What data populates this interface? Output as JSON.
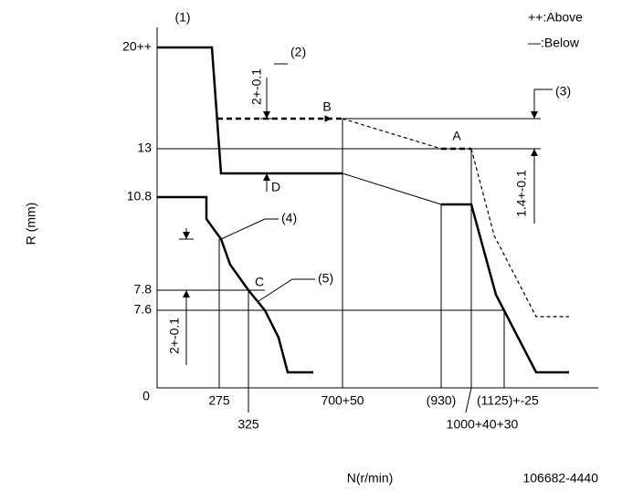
{
  "header": {
    "number": "(1)",
    "legend_above": "++:Above",
    "legend_below": "—:Below"
  },
  "axes": {
    "y_label": "R (mm)",
    "x_label": "N(r/min)",
    "y_ticks": [
      "20++",
      "13",
      "10.8",
      "7.8",
      "7.6",
      "0"
    ],
    "x_ticks": [
      "275",
      "325",
      "700+50",
      "(930)",
      "(1125)+-25",
      "1000+40+30"
    ]
  },
  "callouts": [
    "(2)",
    "(3)",
    "(4)",
    "(5)"
  ],
  "points": [
    "A",
    "B",
    "C",
    "D"
  ],
  "dimensions": [
    "2+-0.1",
    "1.4+-0.1",
    "2+-0.1"
  ],
  "footer": {
    "code": "106682-4440"
  }
}
